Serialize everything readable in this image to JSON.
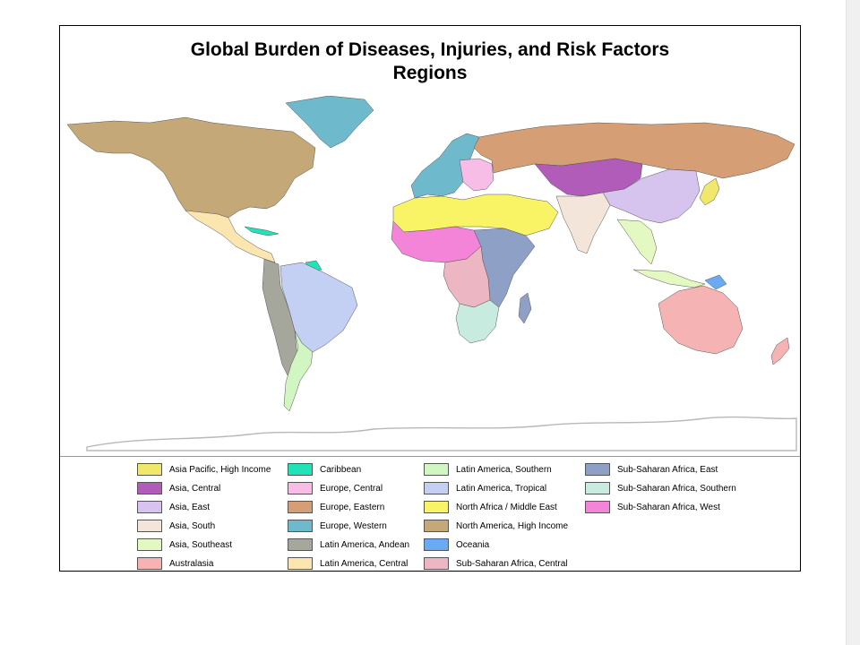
{
  "title_line1": "Global Burden of Diseases, Injuries, and Risk Factors",
  "title_line2": "Regions",
  "legend": [
    {
      "label": "Asia Pacific, High Income",
      "color": "#f0e86a"
    },
    {
      "label": "Asia, Central",
      "color": "#b05cb8"
    },
    {
      "label": "Asia, East",
      "color": "#d6c3ee"
    },
    {
      "label": "Asia, South",
      "color": "#f3e5da"
    },
    {
      "label": "Asia, Southeast",
      "color": "#e4f9c2"
    },
    {
      "label": "Australasia",
      "color": "#f6b3b3"
    },
    {
      "label": "Caribbean",
      "color": "#22e2b7"
    },
    {
      "label": "Europe, Central",
      "color": "#f7bde6"
    },
    {
      "label": "Europe, Eastern",
      "color": "#d59e74"
    },
    {
      "label": "Europe, Western",
      "color": "#6eb9cc"
    },
    {
      "label": "Latin America, Andean",
      "color": "#a5a79d"
    },
    {
      "label": "Latin America, Central",
      "color": "#fbe6b0"
    },
    {
      "label": "Latin America, Southern",
      "color": "#d2f6c1"
    },
    {
      "label": "Latin America, Tropical",
      "color": "#c3cff3"
    },
    {
      "label": "North Africa / Middle East",
      "color": "#f8f466"
    },
    {
      "label": "North America, High Income",
      "color": "#c4a878"
    },
    {
      "label": "Oceania",
      "color": "#6aaaf2"
    },
    {
      "label": "Sub-Saharan Africa, Central",
      "color": "#ecb6c3"
    },
    {
      "label": "Sub-Saharan Africa, East",
      "color": "#8fa0c6"
    },
    {
      "label": "Sub-Saharan Africa, Southern",
      "color": "#c8ebe0"
    },
    {
      "label": "Sub-Saharan Africa, West",
      "color": "#f484d8"
    }
  ]
}
